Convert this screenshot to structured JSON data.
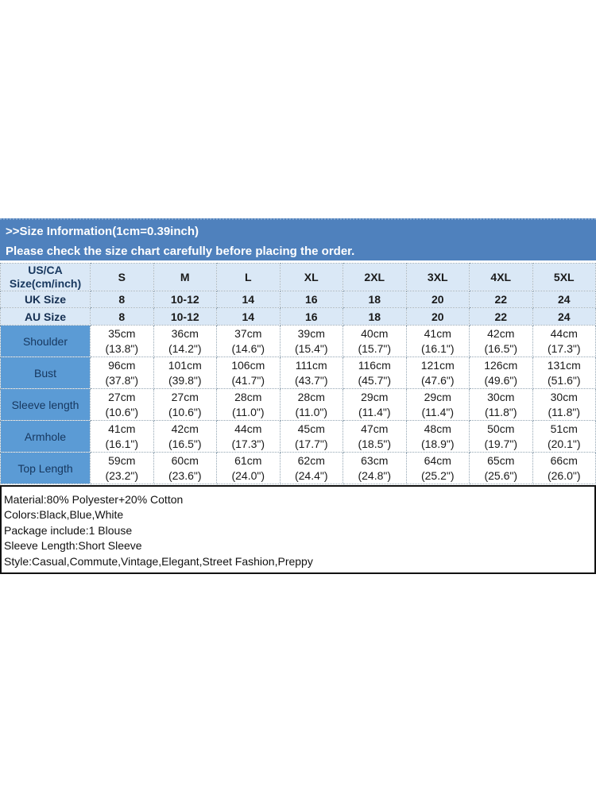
{
  "banner": {
    "line1": ">>Size Information(1cm=0.39inch)",
    "line2": "Please check the size chart carefully before placing the order."
  },
  "size_table": {
    "corner": {
      "line1": "US/CA",
      "line2": "Size(cm/inch)"
    },
    "size_headers": [
      "S",
      "M",
      "L",
      "XL",
      "2XL",
      "3XL",
      "4XL",
      "5XL"
    ],
    "uk_row": {
      "label": "UK Size",
      "values": [
        "8",
        "10-12",
        "14",
        "16",
        "18",
        "20",
        "22",
        "24"
      ]
    },
    "au_row": {
      "label": "AU Size",
      "values": [
        "8",
        "10-12",
        "14",
        "16",
        "18",
        "20",
        "22",
        "24"
      ]
    },
    "measurement_rows": [
      {
        "label": "Shoulder",
        "cm": [
          "35cm",
          "36cm",
          "37cm",
          "39cm",
          "40cm",
          "41cm",
          "42cm",
          "44cm"
        ],
        "inch": [
          "(13.8\")",
          "(14.2\")",
          "(14.6\")",
          "(15.4\")",
          "(15.7\")",
          "(16.1\")",
          "(16.5\")",
          "(17.3\")"
        ]
      },
      {
        "label": "Bust",
        "cm": [
          "96cm",
          "101cm",
          "106cm",
          "111cm",
          "116cm",
          "121cm",
          "126cm",
          "131cm"
        ],
        "inch": [
          "(37.8\")",
          "(39.8\")",
          "(41.7\")",
          "(43.7\")",
          "(45.7\")",
          "(47.6\")",
          "(49.6\")",
          "(51.6\")"
        ]
      },
      {
        "label": "Sleeve length",
        "cm": [
          "27cm",
          "27cm",
          "28cm",
          "28cm",
          "29cm",
          "29cm",
          "30cm",
          "30cm"
        ],
        "inch": [
          "(10.6\")",
          "(10.6\")",
          "(11.0\")",
          "(11.0\")",
          "(11.4\")",
          "(11.4\")",
          "(11.8\")",
          "(11.8\")"
        ]
      },
      {
        "label": "Armhole",
        "cm": [
          "41cm",
          "42cm",
          "44cm",
          "45cm",
          "47cm",
          "48cm",
          "50cm",
          "51cm"
        ],
        "inch": [
          "(16.1\")",
          "(16.5\")",
          "(17.3\")",
          "(17.7\")",
          "(18.5\")",
          "(18.9\")",
          "(19.7\")",
          "(20.1\")"
        ]
      },
      {
        "label": "Top Length",
        "cm": [
          "59cm",
          "60cm",
          "61cm",
          "62cm",
          "63cm",
          "64cm",
          "65cm",
          "66cm"
        ],
        "inch": [
          "(23.2\")",
          "(23.6\")",
          "(24.0\")",
          "(24.4\")",
          "(24.8\")",
          "(25.2\")",
          "(25.6\")",
          "(26.0\")"
        ]
      }
    ]
  },
  "details": {
    "lines": [
      "Material:80% Polyester+20% Cotton",
      "Colors:Black,Blue,White",
      "Package include:1 Blouse",
      "Sleeve Length:Short Sleeve",
      "Style:Casual,Commute,Vintage,Elegant,Street Fashion,Preppy"
    ]
  },
  "colors": {
    "banner_blue": "#4F81BD",
    "header_light_blue": "#DAE8F6",
    "row_label_blue": "#5B9BD5",
    "navy_text": "#17375E",
    "body_text": "#1a1a1a",
    "details_border": "#111111"
  }
}
